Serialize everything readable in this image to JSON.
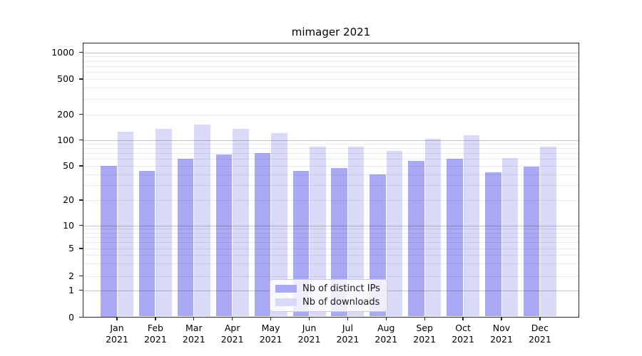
{
  "title": "mimager 2021",
  "chart_data": {
    "type": "bar",
    "title": "mimager 2021",
    "categories": [
      "Jan 2021",
      "Feb 2021",
      "Mar 2021",
      "Apr 2021",
      "May 2021",
      "Jun 2021",
      "Jul 2021",
      "Aug 2021",
      "Sep 2021",
      "Oct 2021",
      "Nov 2021",
      "Dec 2021"
    ],
    "series": [
      {
        "name": "Nb of distinct IPs",
        "color": "#a9a9f4",
        "values": [
          50,
          44,
          61,
          68,
          71,
          44,
          47,
          40,
          57,
          61,
          42,
          49
        ]
      },
      {
        "name": "Nb of downloads",
        "color": "#d9d9f8",
        "values": [
          124,
          134,
          152,
          134,
          119,
          84,
          84,
          74,
          103,
          113,
          62,
          84
        ]
      }
    ],
    "xlabel": "",
    "ylabel": "",
    "yscale": "symlog",
    "yticks": [
      0,
      1,
      2,
      5,
      10,
      20,
      50,
      100,
      200,
      500,
      1000
    ],
    "ylim": [
      0,
      1290
    ],
    "grid": "both, drawn above bars",
    "legend_position": "lower center",
    "colors": {
      "bar_distinct_ips": "#a9a9f4",
      "bar_downloads": "#d9d9f8",
      "grid_major": "rgba(0,0,0,0.22)",
      "grid_minor": "rgba(0,0,0,0.08)",
      "spine": "#262626",
      "background": "#ffffff"
    }
  }
}
